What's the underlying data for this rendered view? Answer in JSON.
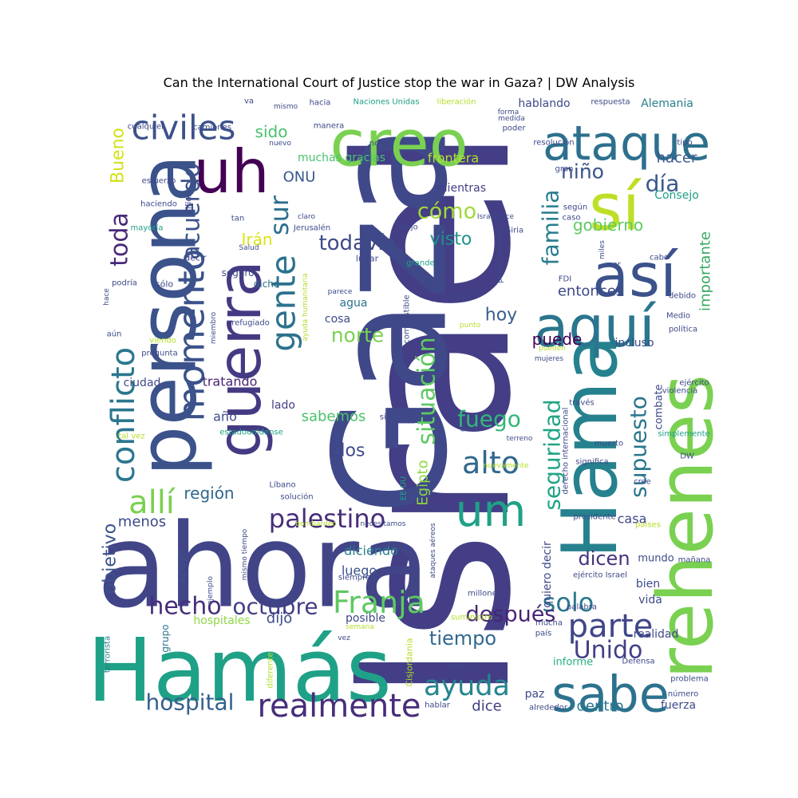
{
  "chart_data": {
    "type": "wordcloud",
    "title": "Can the International Court of Justice stop the war in Gaza? | DW Analysis",
    "words": [
      {
        "text": "Israel",
        "color": "#433e85"
      },
      {
        "text": "Gaza",
        "color": "#3f4889"
      },
      {
        "text": "ahora",
        "color": "#414487"
      },
      {
        "text": "persona",
        "color": "#3b528b"
      },
      {
        "text": "Hamás",
        "color": "#1fa187"
      },
      {
        "text": "Hama",
        "color": "#26818e"
      },
      {
        "text": "rehenes",
        "color": "#7ad151"
      },
      {
        "text": "guerra",
        "color": "#443a83"
      },
      {
        "text": "creo",
        "color": "#7ad151"
      },
      {
        "text": "sí",
        "color": "#bddf26"
      },
      {
        "text": "así",
        "color": "#3b528b"
      },
      {
        "text": "aquí",
        "color": "#2a768e"
      },
      {
        "text": "ataque",
        "color": "#2d708e"
      },
      {
        "text": "uh",
        "color": "#440154"
      },
      {
        "text": "sabe",
        "color": "#2c728e"
      },
      {
        "text": "momento",
        "color": "#3b528b"
      },
      {
        "text": "gente",
        "color": "#2c728e"
      },
      {
        "text": "um",
        "color": "#1fa187"
      },
      {
        "text": "realmente",
        "color": "#472d7b"
      },
      {
        "text": "palestino",
        "color": "#472c7a"
      },
      {
        "text": "conflicto",
        "color": "#2a768e"
      },
      {
        "text": "civiles",
        "color": "#3b528b"
      },
      {
        "text": "parte",
        "color": "#404688"
      },
      {
        "text": "Franja",
        "color": "#5ec962"
      },
      {
        "text": "allí",
        "color": "#7ad151"
      },
      {
        "text": "ayuda",
        "color": "#25858e"
      },
      {
        "text": "alto",
        "color": "#31688e"
      },
      {
        "text": "situación",
        "color": "#5ec962"
      },
      {
        "text": "seguridad",
        "color": "#20a486"
      },
      {
        "text": "supuesto",
        "color": "#2a768e"
      },
      {
        "text": "familia",
        "color": "#287d8e"
      },
      {
        "text": "fuego",
        "color": "#32b67a"
      },
      {
        "text": "hospital",
        "color": "#355f8d"
      },
      {
        "text": "solo",
        "color": "#2a788e"
      },
      {
        "text": "Unido",
        "color": "#424086"
      },
      {
        "text": "después",
        "color": "#482475"
      },
      {
        "text": "hecho",
        "color": "#472d7b"
      },
      {
        "text": "octubre",
        "color": "#424086"
      },
      {
        "text": "niño",
        "color": "#3b528b"
      },
      {
        "text": "día",
        "color": "#38588c"
      },
      {
        "text": "toda",
        "color": "#482878"
      },
      {
        "text": "cómo",
        "color": "#a2da37"
      },
      {
        "text": "todavía",
        "color": "#3e4a89"
      },
      {
        "text": "norte",
        "color": "#7ad151"
      },
      {
        "text": "tiempo",
        "color": "#31688e"
      },
      {
        "text": "dicen",
        "color": "#46327e"
      },
      {
        "text": "sur",
        "color": "#2d708e"
      },
      {
        "text": "Bueno",
        "color": "#d2e21b"
      },
      {
        "text": "objetivo",
        "color": "#3b528b"
      },
      {
        "text": "dos",
        "color": "#3e4a89"
      },
      {
        "text": "visto",
        "color": "#21918c"
      },
      {
        "text": "región",
        "color": "#31688e"
      },
      {
        "text": "Irán",
        "color": "#dde318"
      },
      {
        "text": "sido",
        "color": "#4ac16d"
      },
      {
        "text": "gobierno",
        "color": "#5ec962"
      },
      {
        "text": "hoy",
        "color": "#355f8d"
      },
      {
        "text": "puede",
        "color": "#440154"
      },
      {
        "text": "Egipto",
        "color": "#8fd744"
      },
      {
        "text": "sabemos",
        "color": "#4ac16d"
      },
      {
        "text": "importante",
        "color": "#38a862"
      },
      {
        "text": "hacer",
        "color": "#38588c"
      },
      {
        "text": "ONU",
        "color": "#38588c"
      },
      {
        "text": "dicho",
        "color": "#2d708e"
      },
      {
        "text": "dice",
        "color": "#423f85"
      },
      {
        "text": "dentro",
        "color": "#2a768e"
      },
      {
        "text": "entonces",
        "color": "#3e4a89"
      },
      {
        "text": "casa",
        "color": "#404688"
      },
      {
        "text": "menos",
        "color": "#3e4a89"
      },
      {
        "text": "apoyo",
        "color": "#3b528b"
      },
      {
        "text": "diciendo",
        "color": "#287d8e"
      },
      {
        "text": "luego",
        "color": "#3b528b"
      },
      {
        "text": "posible",
        "color": "#3e4a89"
      },
      {
        "text": "dijo",
        "color": "#3e4a89"
      },
      {
        "text": "año",
        "color": "#3e4a89"
      },
      {
        "text": "ciudad",
        "color": "#3e4a89"
      },
      {
        "text": "tratando",
        "color": "#482475"
      },
      {
        "text": "lado",
        "color": "#424086"
      },
      {
        "text": "acuerdo",
        "color": "#3b528b"
      },
      {
        "text": "hablando",
        "color": "#3e4a89"
      },
      {
        "text": "muchas gracias",
        "color": "#4ac16d"
      },
      {
        "text": "frontera",
        "color": "#b5de2b"
      },
      {
        "text": "mientras",
        "color": "#424086"
      },
      {
        "text": "agua",
        "color": "#2c728e"
      },
      {
        "text": "cosa",
        "color": "#3e4a89"
      },
      {
        "text": "incluso",
        "color": "#3e4a89"
      },
      {
        "text": "hospitales",
        "color": "#8fd744"
      },
      {
        "text": "Alemania",
        "color": "#26818e"
      },
      {
        "text": "Consejo",
        "color": "#1fa187"
      },
      {
        "text": "realidad",
        "color": "#3e4a89"
      },
      {
        "text": "vida",
        "color": "#3e4a89"
      },
      {
        "text": "bien",
        "color": "#3e4a89"
      },
      {
        "text": "mundo",
        "color": "#3e4a89"
      },
      {
        "text": "combate",
        "color": "#3e4a89"
      },
      {
        "text": "paz",
        "color": "#3e4a89"
      },
      {
        "text": "fuerza",
        "color": "#3e4a89"
      },
      {
        "text": "informe",
        "color": "#29af7f"
      },
      {
        "text": "quiero decir",
        "color": "#3e4a89"
      },
      {
        "text": "Cisjordania",
        "color": "#b5de2b"
      },
      {
        "text": "grupo",
        "color": "#2a768e"
      },
      {
        "text": "terrorista",
        "color": "#26818e"
      },
      {
        "text": "ejemplo",
        "color": "#3e4a89"
      },
      {
        "text": "mismo tiempo",
        "color": "#3e4a89"
      },
      {
        "text": "tal vez",
        "color": "#b5de2b"
      },
      {
        "text": "estadounidense",
        "color": "#1fa187"
      },
      {
        "text": "Líbano",
        "color": "#3e4a89"
      },
      {
        "text": "solución",
        "color": "#3e4a89"
      },
      {
        "text": "bombardeo",
        "color": "#b5de2b"
      },
      {
        "text": "necesitamos",
        "color": "#3e4a89"
      },
      {
        "text": "ataques aéreos",
        "color": "#3e4a89"
      },
      {
        "text": "millones",
        "color": "#3e4a89"
      },
      {
        "text": "siempre",
        "color": "#3e4a89"
      },
      {
        "text": "suministro",
        "color": "#b5de2b"
      },
      {
        "text": "semana",
        "color": "#b5de2b"
      },
      {
        "text": "diferente",
        "color": "#b5de2b"
      },
      {
        "text": "vez",
        "color": "#3e4a89"
      },
      {
        "text": "tener",
        "color": "#3e4a89"
      },
      {
        "text": "hablar",
        "color": "#3e4a89"
      },
      {
        "text": "alrededor",
        "color": "#3e4a89"
      },
      {
        "text": "número",
        "color": "#3e4a89"
      },
      {
        "text": "problema",
        "color": "#3e4a89"
      },
      {
        "text": "Defensa",
        "color": "#3e4a89"
      },
      {
        "text": "mucha",
        "color": "#3e4a89"
      },
      {
        "text": "país",
        "color": "#3e4a89"
      },
      {
        "text": "palabra",
        "color": "#3e4a89"
      },
      {
        "text": "presidente",
        "color": "#3e4a89"
      },
      {
        "text": "países",
        "color": "#b5de2b"
      },
      {
        "text": "mañana",
        "color": "#3e4a89"
      },
      {
        "text": "ejército Israel",
        "color": "#3e4a89"
      },
      {
        "text": "cree",
        "color": "#3e4a89"
      },
      {
        "text": "DW",
        "color": "#3e4a89"
      },
      {
        "text": "simplemente",
        "color": "#1fa187"
      },
      {
        "text": "muerto",
        "color": "#3e4a89"
      },
      {
        "text": "significa",
        "color": "#3e4a89"
      },
      {
        "text": "derecho internacional",
        "color": "#3e4a89"
      },
      {
        "text": "nuevamente",
        "color": "#b5de2b"
      },
      {
        "text": "terreno",
        "color": "#3e4a89"
      },
      {
        "text": "área",
        "color": "#3e4a89"
      },
      {
        "text": "sino",
        "color": "#3e4a89"
      },
      {
        "text": "través",
        "color": "#3e4a89"
      },
      {
        "text": "violencia",
        "color": "#3e4a89"
      },
      {
        "text": "ejército",
        "color": "#3e4a89"
      },
      {
        "text": "política",
        "color": "#3e4a89"
      },
      {
        "text": "Medio",
        "color": "#3e4a89"
      },
      {
        "text": "debido",
        "color": "#3e4a89"
      },
      {
        "text": "cabo",
        "color": "#3e4a89"
      },
      {
        "text": "ser",
        "color": "#3e4a89"
      },
      {
        "text": "miles",
        "color": "#3e4a89"
      },
      {
        "text": "FDI",
        "color": "#3e4a89"
      },
      {
        "text": "primer ministro",
        "color": "#3e4a89"
      },
      {
        "text": "Siria",
        "color": "#3e4a89"
      },
      {
        "text": "Israel dice",
        "color": "#3e4a89"
      },
      {
        "text": "según",
        "color": "#3e4a89"
      },
      {
        "text": "caso",
        "color": "#3e4a89"
      },
      {
        "text": "gran",
        "color": "#3e4a89"
      },
      {
        "text": "tipo",
        "color": "#3e4a89"
      },
      {
        "text": "resolución",
        "color": "#3e4a89"
      },
      {
        "text": "poder",
        "color": "#3e4a89"
      },
      {
        "text": "medida",
        "color": "#3e4a89"
      },
      {
        "text": "forma",
        "color": "#3e4a89"
      },
      {
        "text": "respuesta",
        "color": "#3e4a89"
      },
      {
        "text": "liberación",
        "color": "#b5de2b"
      },
      {
        "text": "Naciones Unidas",
        "color": "#1fa187"
      },
      {
        "text": "hacia",
        "color": "#3e4a89"
      },
      {
        "text": "noche",
        "color": "#3e4a89"
      },
      {
        "text": "manera",
        "color": "#3e4a89"
      },
      {
        "text": "mismo",
        "color": "#3e4a89"
      },
      {
        "text": "va",
        "color": "#3e4a89"
      },
      {
        "text": "camiones",
        "color": "#3e4a89"
      },
      {
        "text": "cualquier",
        "color": "#3e4a89"
      },
      {
        "text": "nuevo",
        "color": "#3e4a89"
      },
      {
        "text": "esfuerzo",
        "color": "#3e4a89"
      },
      {
        "text": "haciendo",
        "color": "#3e4a89"
      },
      {
        "text": "mayoría",
        "color": "#1fa187"
      },
      {
        "text": "difícil",
        "color": "#3e4a89"
      },
      {
        "text": "tan",
        "color": "#3e4a89"
      },
      {
        "text": "claro",
        "color": "#3e4a89"
      },
      {
        "text": "Jerusalén",
        "color": "#3e4a89"
      },
      {
        "text": "bajo",
        "color": "#3e4a89"
      },
      {
        "text": "decir",
        "color": "#3e4a89"
      },
      {
        "text": "Salud",
        "color": "#3e4a89"
      },
      {
        "text": "lugar",
        "color": "#3e4a89"
      },
      {
        "text": "grande",
        "color": "#1fa187"
      },
      {
        "text": "podría",
        "color": "#3e4a89"
      },
      {
        "text": "sólo",
        "color": "#3e4a89"
      },
      {
        "text": "seguro",
        "color": "#3e4a89"
      },
      {
        "text": "ayuda humanitaria",
        "color": "#b5de2b"
      },
      {
        "text": "combustible",
        "color": "#3e4a89"
      },
      {
        "text": "usted",
        "color": "#3e4a89"
      },
      {
        "text": "hace",
        "color": "#3e4a89"
      },
      {
        "text": "parece",
        "color": "#3e4a89"
      },
      {
        "text": "punto",
        "color": "#b5de2b"
      },
      {
        "text": "aún",
        "color": "#3e4a89"
      },
      {
        "text": "viendo",
        "color": "#b5de2b"
      },
      {
        "text": "miembro",
        "color": "#3e4a89"
      },
      {
        "text": "refugiado",
        "color": "#3e4a89"
      },
      {
        "text": "pregunta",
        "color": "#3e4a89"
      },
      {
        "text": "pueden",
        "color": "#b5de2b"
      },
      {
        "text": "mujeres",
        "color": "#3e4a89"
      },
      {
        "text": "EE UU",
        "color": "#1fa187"
      }
    ]
  }
}
